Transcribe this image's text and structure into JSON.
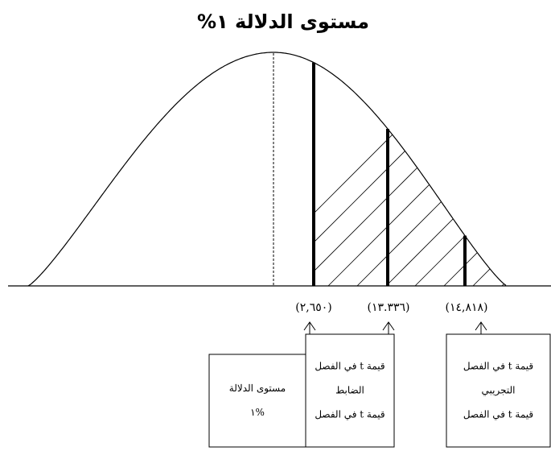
{
  "title": "مستوى الدلالة ١%",
  "values": [
    "(٢,٦٥٠)",
    "(١٣.٣٣٦)",
    "(١٤,٨١٨)"
  ],
  "boxes": [
    {
      "lines": [
        "مستوى الدلالة",
        "%١"
      ]
    },
    {
      "lines": [
        "قيمة t في الفصل",
        "الضابط",
        "قيمة t في الفصل"
      ]
    },
    {
      "lines": [
        "قيمة t في الفصل",
        "التجريبي",
        "قيمة t في الفصل"
      ]
    }
  ]
}
